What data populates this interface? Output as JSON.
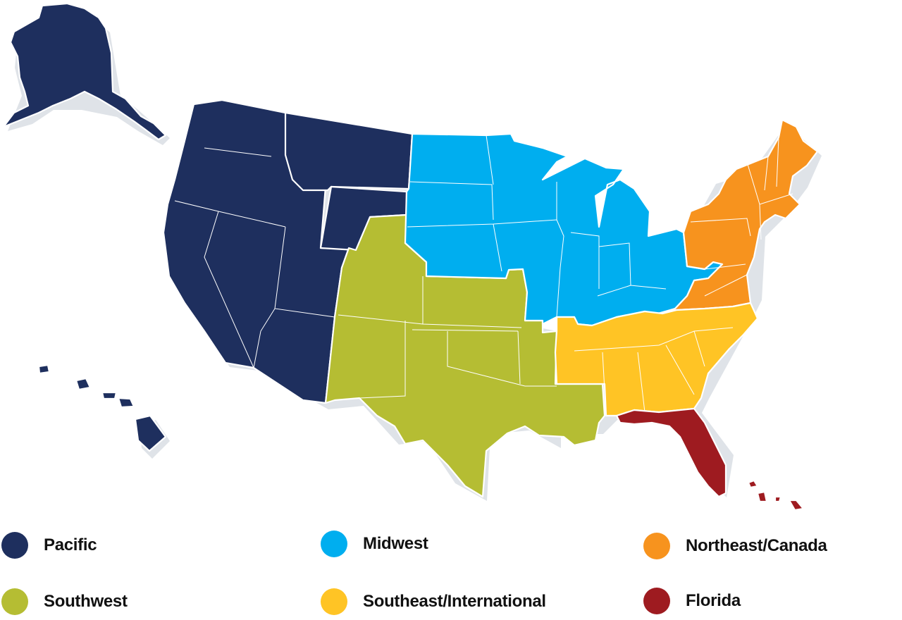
{
  "map": {
    "regions": [
      {
        "name": "Pacific",
        "color": "#1e2f5e"
      },
      {
        "name": "Midwest",
        "color": "#00aeef"
      },
      {
        "name": "Northeast/Canada",
        "color": "#f7931e"
      },
      {
        "name": "Southwest",
        "color": "#b5bd33"
      },
      {
        "name": "Southeast/International",
        "color": "#ffc425"
      },
      {
        "name": "Florida",
        "color": "#9e1b20"
      }
    ],
    "border_color": "#ffffff"
  },
  "legend": {
    "items": [
      {
        "label": "Pacific",
        "color": "#1e2f5e",
        "icon": "circle-swatch"
      },
      {
        "label": "Midwest",
        "color": "#00aeef",
        "icon": "circle-swatch"
      },
      {
        "label": "Northeast/Canada",
        "color": "#f7931e",
        "icon": "circle-swatch"
      },
      {
        "label": "Southwest",
        "color": "#b5bd33",
        "icon": "circle-swatch"
      },
      {
        "label": "Southeast/International",
        "color": "#ffc425",
        "icon": "circle-swatch"
      },
      {
        "label": "Florida",
        "color": "#9e1b20",
        "icon": "circle-swatch"
      }
    ]
  }
}
